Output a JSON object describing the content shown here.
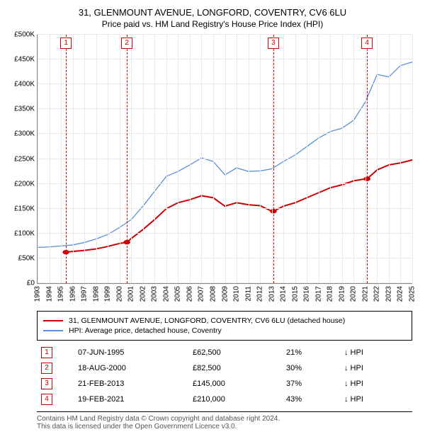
{
  "title": {
    "line1": "31, GLENMOUNT AVENUE, LONGFORD, COVENTRY, CV6 6LU",
    "line2": "Price paid vs. HM Land Registry's House Price Index (HPI)"
  },
  "chart": {
    "type": "line",
    "background_color": "#ffffff",
    "grid_color": "#e8e8e8",
    "axis_color": "#888888",
    "x": {
      "min": 1993,
      "max": 2025,
      "tick_step": 1
    },
    "y": {
      "min": 0,
      "max": 500000,
      "tick_step": 50000,
      "tick_labels": [
        "£0",
        "£50K",
        "£100K",
        "£150K",
        "£200K",
        "£250K",
        "£300K",
        "£350K",
        "£400K",
        "£450K",
        "£500K"
      ]
    },
    "markers": [
      {
        "n": "1",
        "x": 1995.43
      },
      {
        "n": "2",
        "x": 2000.63
      },
      {
        "n": "3",
        "x": 2013.14
      },
      {
        "n": "4",
        "x": 2021.14
      }
    ],
    "series": [
      {
        "name": "price_paid",
        "color": "#cc0000",
        "width": 2,
        "points": [
          [
            1995.43,
            62500
          ],
          [
            1996,
            64000
          ],
          [
            1997,
            66000
          ],
          [
            1998,
            69000
          ],
          [
            1999,
            74000
          ],
          [
            2000,
            80000
          ],
          [
            2000.63,
            82500
          ],
          [
            2001,
            90000
          ],
          [
            2002,
            108000
          ],
          [
            2003,
            128000
          ],
          [
            2004,
            150000
          ],
          [
            2005,
            162000
          ],
          [
            2006,
            168000
          ],
          [
            2007,
            176000
          ],
          [
            2008,
            172000
          ],
          [
            2009,
            155000
          ],
          [
            2010,
            162000
          ],
          [
            2011,
            158000
          ],
          [
            2012,
            156000
          ],
          [
            2013,
            145000
          ],
          [
            2013.14,
            145000
          ],
          [
            2014,
            155000
          ],
          [
            2015,
            162000
          ],
          [
            2016,
            172000
          ],
          [
            2017,
            182000
          ],
          [
            2018,
            192000
          ],
          [
            2019,
            198000
          ],
          [
            2020,
            206000
          ],
          [
            2021,
            210000
          ],
          [
            2021.14,
            210000
          ],
          [
            2022,
            228000
          ],
          [
            2023,
            238000
          ],
          [
            2024,
            242000
          ],
          [
            2025,
            248000
          ]
        ]
      },
      {
        "name": "hpi",
        "color": "#5b8fd6",
        "width": 1.3,
        "points": [
          [
            1993,
            72000
          ],
          [
            1994,
            73000
          ],
          [
            1995,
            75000
          ],
          [
            1996,
            77000
          ],
          [
            1997,
            82000
          ],
          [
            1998,
            89000
          ],
          [
            1999,
            98000
          ],
          [
            2000,
            112000
          ],
          [
            2001,
            128000
          ],
          [
            2002,
            155000
          ],
          [
            2003,
            185000
          ],
          [
            2004,
            215000
          ],
          [
            2005,
            225000
          ],
          [
            2006,
            238000
          ],
          [
            2007,
            252000
          ],
          [
            2008,
            245000
          ],
          [
            2009,
            218000
          ],
          [
            2010,
            232000
          ],
          [
            2011,
            225000
          ],
          [
            2012,
            226000
          ],
          [
            2013,
            230000
          ],
          [
            2014,
            245000
          ],
          [
            2015,
            258000
          ],
          [
            2016,
            275000
          ],
          [
            2017,
            292000
          ],
          [
            2018,
            305000
          ],
          [
            2019,
            312000
          ],
          [
            2020,
            328000
          ],
          [
            2021,
            365000
          ],
          [
            2022,
            420000
          ],
          [
            2023,
            415000
          ],
          [
            2024,
            438000
          ],
          [
            2025,
            445000
          ]
        ]
      }
    ]
  },
  "legend": {
    "items": [
      {
        "color": "#cc0000",
        "label": "31, GLENMOUNT AVENUE, LONGFORD, COVENTRY, CV6 6LU (detached house)"
      },
      {
        "color": "#5b8fd6",
        "label": "HPI: Average price, detached house, Coventry"
      }
    ]
  },
  "events": [
    {
      "n": "1",
      "date": "07-JUN-1995",
      "price": "£62,500",
      "pct": "21%",
      "note": "↓ HPI"
    },
    {
      "n": "2",
      "date": "18-AUG-2000",
      "price": "£82,500",
      "pct": "30%",
      "note": "↓ HPI"
    },
    {
      "n": "3",
      "date": "21-FEB-2013",
      "price": "£145,000",
      "pct": "37%",
      "note": "↓ HPI"
    },
    {
      "n": "4",
      "date": "19-FEB-2021",
      "price": "£210,000",
      "pct": "43%",
      "note": "↓ HPI"
    }
  ],
  "footer": {
    "line1": "Contains HM Land Registry data © Crown copyright and database right 2024.",
    "line2": "This data is licensed under the Open Government Licence v3.0."
  }
}
